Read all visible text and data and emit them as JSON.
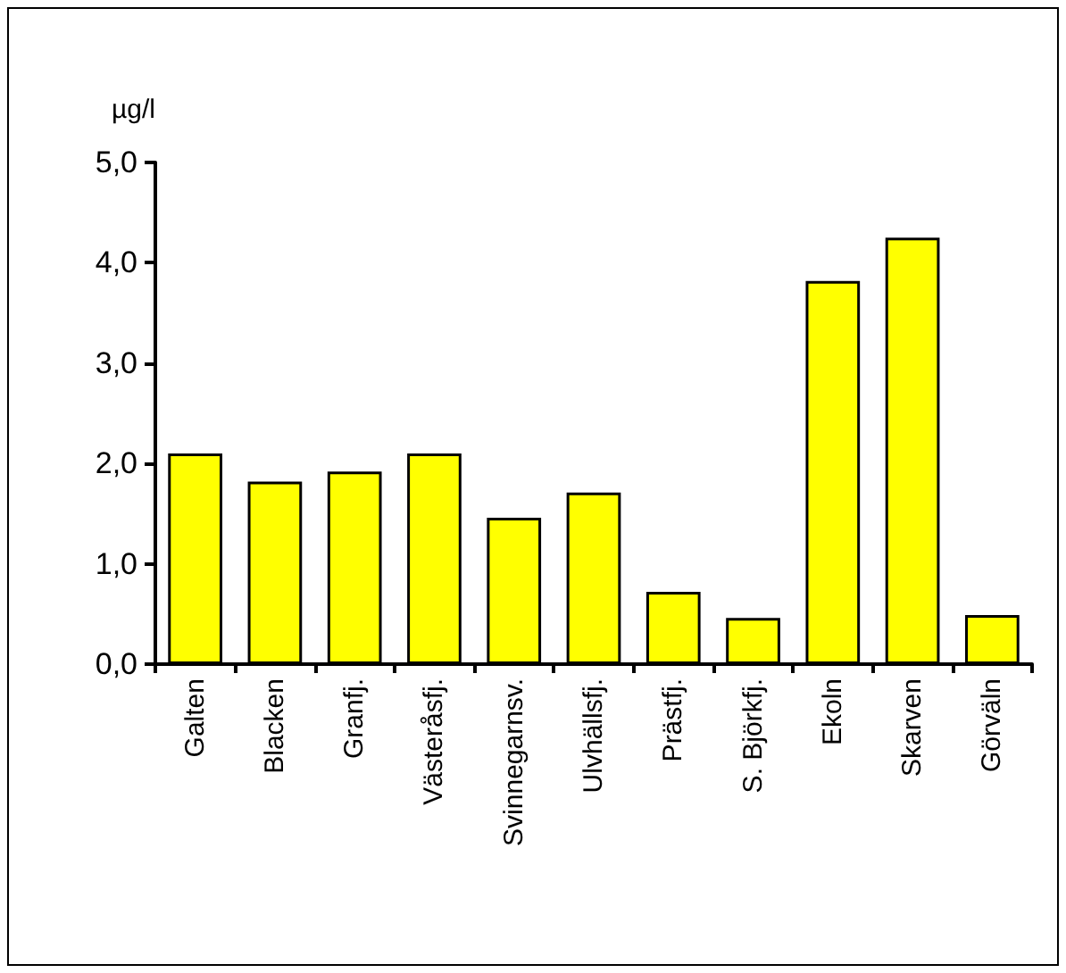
{
  "chart_data": {
    "type": "bar",
    "ylabel": "µg/l",
    "categories": [
      "Galten",
      "Blacken",
      "Granfj.",
      "Västeråsfj.",
      "Svinnegarnsv.",
      "Ulvhällsfj.",
      "Prästfj.",
      "S. Björkfj.",
      "Ekoln",
      "Skarven",
      "Görväln"
    ],
    "values": [
      2.1,
      1.82,
      1.92,
      2.1,
      1.46,
      1.71,
      0.72,
      0.46,
      3.82,
      4.25,
      0.49
    ],
    "color": "#ffff00",
    "ylim": [
      0,
      5
    ],
    "yticks": [
      {
        "value": 0,
        "label": "0,0"
      },
      {
        "value": 1,
        "label": "1,0"
      },
      {
        "value": 2,
        "label": "2,0"
      },
      {
        "value": 3,
        "label": "3,0"
      },
      {
        "value": 4,
        "label": "4,0"
      },
      {
        "value": 5,
        "label": "5,0"
      }
    ],
    "grid": false
  }
}
